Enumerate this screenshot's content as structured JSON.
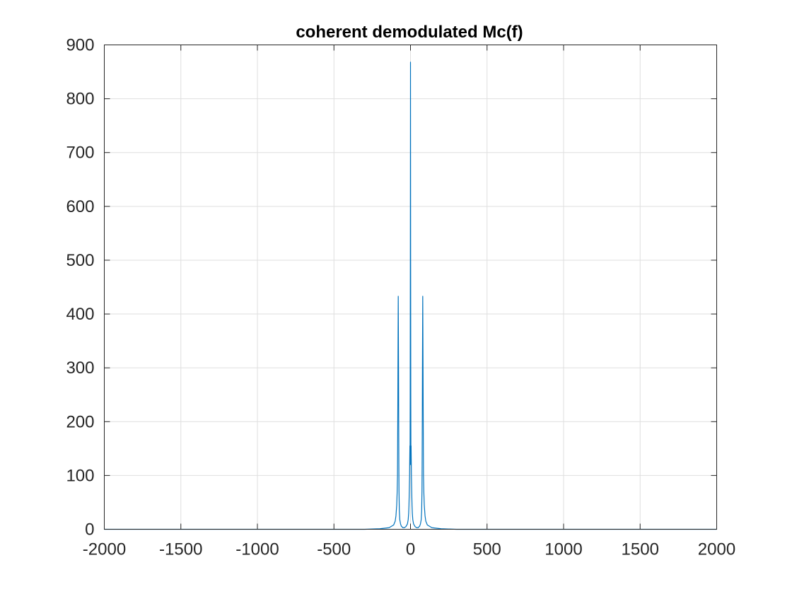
{
  "chart_data": {
    "type": "line",
    "title": "coherent demodulated Mc(f)",
    "xlabel": "",
    "ylabel": "",
    "xlim": [
      -2000,
      2000
    ],
    "ylim": [
      0,
      900
    ],
    "xticks": [
      -2000,
      -1500,
      -1000,
      -500,
      0,
      500,
      1000,
      1500,
      2000
    ],
    "yticks": [
      0,
      100,
      200,
      300,
      400,
      500,
      600,
      700,
      800,
      900
    ],
    "xtick_labels": [
      "-2000",
      "-1500",
      "-1000",
      "-500",
      "0",
      "500",
      "1000",
      "1500",
      "2000"
    ],
    "ytick_labels": [
      "0",
      "100",
      "200",
      "300",
      "400",
      "500",
      "600",
      "700",
      "800",
      "900"
    ],
    "grid": true,
    "series": [
      {
        "color": "#0072BD",
        "x": [
          -2000,
          -300,
          -200,
          -140,
          -110,
          -100,
          -95,
          -90,
          -87,
          -85,
          -84,
          -83,
          -82,
          -81,
          -80,
          -79,
          -78,
          -77,
          -76,
          -75,
          -73,
          -70,
          -65,
          -60,
          -50,
          -40,
          -30,
          -20,
          -15,
          -12,
          -10,
          -8,
          -6,
          -5,
          -4,
          -3,
          -2,
          -1,
          0,
          1,
          2,
          3,
          4,
          5,
          6,
          8,
          10,
          12,
          15,
          20,
          30,
          40,
          50,
          60,
          65,
          70,
          73,
          75,
          76,
          77,
          78,
          79,
          80,
          81,
          82,
          83,
          84,
          85,
          87,
          90,
          95,
          100,
          110,
          140,
          200,
          300,
          2000
        ],
        "y": [
          0,
          0,
          1,
          3,
          8,
          15,
          25,
          45,
          70,
          100,
          150,
          220,
          300,
          370,
          433,
          370,
          300,
          200,
          120,
          70,
          35,
          18,
          10,
          6,
          3,
          3,
          5,
          10,
          18,
          30,
          45,
          70,
          100,
          130,
          155,
          120,
          250,
          500,
          868,
          500,
          250,
          120,
          155,
          130,
          100,
          70,
          45,
          30,
          18,
          10,
          5,
          3,
          3,
          6,
          10,
          18,
          35,
          70,
          120,
          200,
          300,
          370,
          433,
          370,
          300,
          220,
          150,
          100,
          70,
          45,
          25,
          15,
          8,
          3,
          1,
          0,
          0
        ]
      }
    ]
  }
}
